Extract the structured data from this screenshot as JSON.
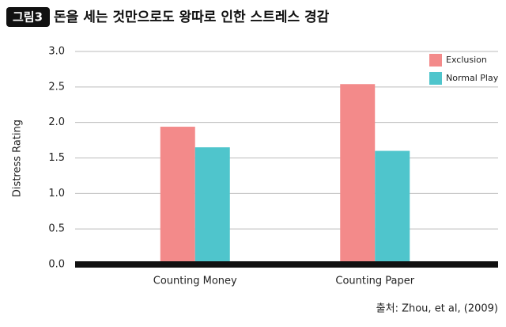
{
  "figure_label": "그림3",
  "chart_data": {
    "type": "bar",
    "title": "돈을 세는 것만으로도 왕따로 인한 스트레스 경감",
    "y_label": "Distress Rating",
    "source": "출처: Zhou, et al, (2009)",
    "categories": [
      "Counting Money",
      "Counting Paper"
    ],
    "series": [
      {
        "name": "Exclusion",
        "color": "#f38a8a",
        "values": [
          1.94,
          2.54
        ]
      },
      {
        "name": "Normal Play",
        "color": "#4fc5cc",
        "values": [
          1.65,
          1.6
        ]
      }
    ],
    "ylim": [
      0,
      3
    ],
    "yticks": [
      {
        "value": 0,
        "label": "0.0"
      },
      {
        "value": 0.5,
        "label": "0.5"
      },
      {
        "value": 1,
        "label": "1.0"
      },
      {
        "value": 1.5,
        "label": "1.5"
      },
      {
        "value": 2,
        "label": "2.0"
      },
      {
        "value": 2.5,
        "label": "2.5"
      },
      {
        "value": 3,
        "label": "3.0"
      }
    ],
    "grid": true,
    "legend": "upper right"
  }
}
